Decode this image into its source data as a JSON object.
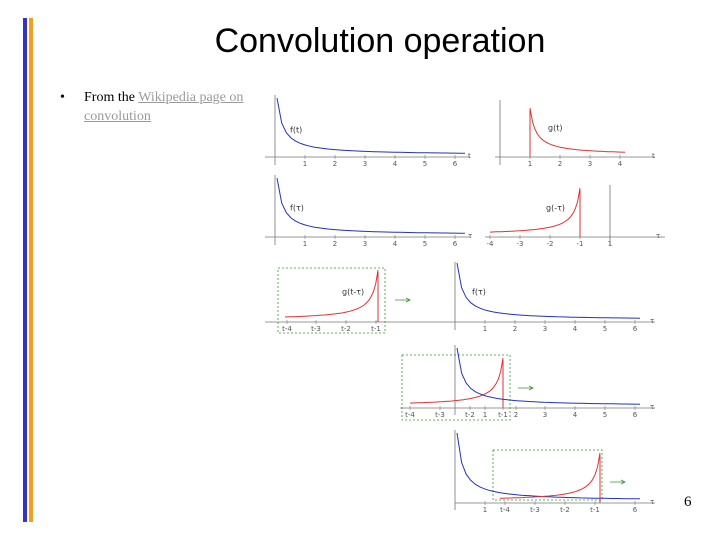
{
  "title": "Convolution operation",
  "bullet": {
    "text": "From the",
    "link": "Wikipedia page on convolution"
  },
  "page_number": "6",
  "panels": [
    {
      "labels": [
        "f(t)"
      ],
      "axis_label": "t",
      "ticks": [
        "1",
        "2",
        "3",
        "4",
        "5",
        "6"
      ]
    },
    {
      "labels": [
        "g(t)"
      ],
      "axis_label": "t",
      "ticks": [
        "1",
        "2",
        "3",
        "4"
      ]
    },
    {
      "labels": [
        "f(τ)"
      ],
      "axis_label": "τ",
      "ticks": [
        "1",
        "2",
        "3",
        "4",
        "5",
        "6"
      ]
    },
    {
      "labels": [
        "g(-τ)"
      ],
      "axis_label": "τ",
      "ticks": [
        "-4",
        "-3",
        "-2",
        "-1",
        "1"
      ]
    },
    {
      "labels": [
        "g(t-τ)",
        "f(τ)"
      ],
      "axis_label": "τ",
      "ticks": [
        "t-4",
        "t-3",
        "t-2",
        "t-1",
        "1",
        "2",
        "3",
        "4",
        "5",
        "6"
      ]
    },
    {
      "axis_label": "τ",
      "ticks": [
        "t-4",
        "t-3",
        "t-2",
        "1",
        "t-1",
        "2",
        "3",
        "4",
        "5",
        "6"
      ]
    },
    {
      "axis_label": "τ",
      "ticks": [
        "1",
        "t-4",
        "t-3",
        "t-2",
        "t-1",
        "6"
      ]
    }
  ]
}
